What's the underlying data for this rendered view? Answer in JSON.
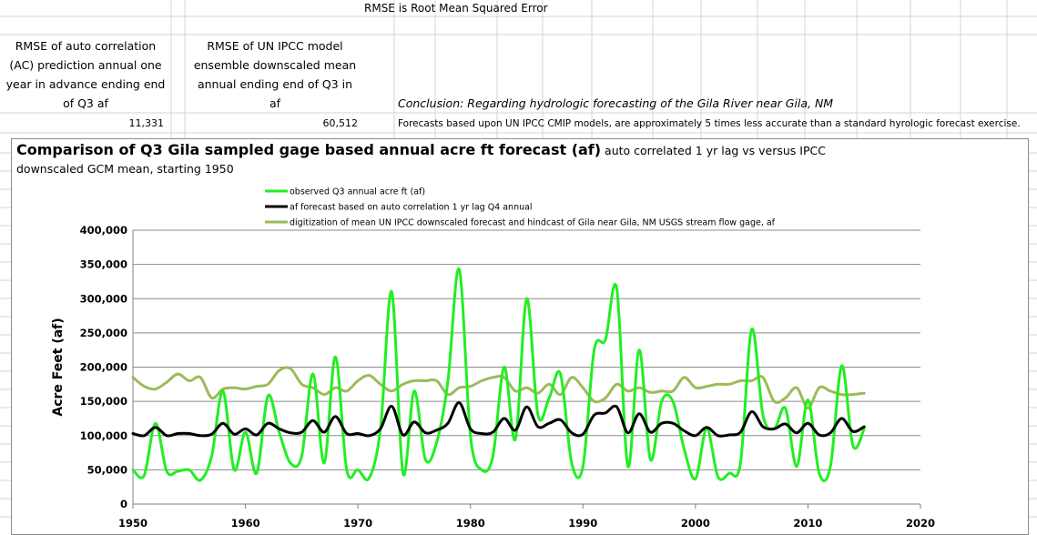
{
  "sheet": {
    "note": "RMSE is  Root Mean Squared Error",
    "col_a_header": [
      "RMSE of auto correlation",
      "(AC)  prediction annual one",
      "year in advance ending end",
      "of Q3 af"
    ],
    "col_b_header": [
      "RMSE of UN IPCC model",
      "ensemble downscaled mean",
      "annual ending end of Q3 in",
      "af"
    ],
    "conclusion": "Conclusion: Regarding hydrologic forecasting of the Gila River near Gila, NM",
    "rmse_ac": "11,331",
    "rmse_ipcc": "60,512",
    "forecast_note": "Forecasts based upon UN IPCC CMIP models, are approximately 5 times less accurate than a standard hyrologic forecast exercise."
  },
  "chart_data": {
    "type": "line",
    "title": "Comparison of Q3 Gila sampled gage based annual acre ft forecast  (af)",
    "title_rest": " auto correlated 1 yr lag  vs versus  IPCC",
    "title_line2": "downscaled GCM mean, starting 1950",
    "ylabel": "Acre Feet (af)",
    "xlabel": "",
    "xlim": [
      1950,
      2020
    ],
    "ylim": [
      0,
      400000
    ],
    "x_ticks": [
      "1950",
      "1960",
      "1970",
      "1980",
      "1990",
      "2000",
      "2010",
      "2020"
    ],
    "y_ticks": [
      "0",
      "50,000",
      "100,000",
      "150,000",
      "200,000",
      "250,000",
      "300,000",
      "350,000",
      "400,000"
    ],
    "grid": true,
    "legend_position": "top-center",
    "series": [
      {
        "name": "observed Q3 annual acre ft (af)",
        "color": "#22ee22",
        "width": 3,
        "x": [
          1950,
          1951,
          1952,
          1953,
          1954,
          1955,
          1956,
          1957,
          1958,
          1959,
          1960,
          1961,
          1962,
          1963,
          1964,
          1965,
          1966,
          1967,
          1968,
          1969,
          1970,
          1971,
          1972,
          1973,
          1974,
          1975,
          1976,
          1977,
          1978,
          1979,
          1980,
          1981,
          1982,
          1983,
          1984,
          1985,
          1986,
          1987,
          1988,
          1989,
          1990,
          1991,
          1992,
          1993,
          1994,
          1995,
          1996,
          1997,
          1998,
          1999,
          2000,
          2001,
          2002,
          2003,
          2004,
          2005,
          2006,
          2007,
          2008,
          2009,
          2010,
          2011,
          2012,
          2013,
          2014,
          2015
        ],
        "values": [
          50000,
          42000,
          118000,
          48000,
          48000,
          50000,
          35000,
          70000,
          165000,
          50000,
          105000,
          45000,
          158000,
          105000,
          60000,
          70000,
          190000,
          60000,
          215000,
          50000,
          50000,
          38000,
          110000,
          310000,
          45000,
          165000,
          65000,
          90000,
          180000,
          343000,
          100000,
          50000,
          70000,
          200000,
          95000,
          300000,
          130000,
          155000,
          190000,
          60000,
          55000,
          225000,
          240000,
          315000,
          55000,
          225000,
          65000,
          150000,
          150000,
          80000,
          37000,
          110000,
          40000,
          45000,
          60000,
          255000,
          130000,
          110000,
          140000,
          55000,
          152000,
          45000,
          55000,
          202000,
          85000,
          110000
        ]
      },
      {
        "name": "af forecast based on auto correlation 1 yr lag Q4 annual",
        "color": "#000000",
        "width": 3,
        "x": [
          1950,
          1951,
          1952,
          1953,
          1954,
          1955,
          1956,
          1957,
          1958,
          1959,
          1960,
          1961,
          1962,
          1963,
          1964,
          1965,
          1966,
          1967,
          1968,
          1969,
          1970,
          1971,
          1972,
          1973,
          1974,
          1975,
          1976,
          1977,
          1978,
          1979,
          1980,
          1981,
          1982,
          1983,
          1984,
          1985,
          1986,
          1987,
          1988,
          1989,
          1990,
          1991,
          1992,
          1993,
          1994,
          1995,
          1996,
          1997,
          1998,
          1999,
          2000,
          2001,
          2002,
          2003,
          2004,
          2005,
          2006,
          2007,
          2008,
          2009,
          2010,
          2011,
          2012,
          2013,
          2014,
          2015
        ],
        "values": [
          103000,
          100000,
          112000,
          100000,
          103000,
          103000,
          100000,
          102000,
          118000,
          102000,
          110000,
          101000,
          118000,
          110000,
          104000,
          105000,
          122000,
          105000,
          128000,
          103000,
          103000,
          100000,
          110000,
          143000,
          101000,
          120000,
          104000,
          108000,
          118000,
          148000,
          110000,
          103000,
          105000,
          125000,
          108000,
          142000,
          113000,
          118000,
          123000,
          104000,
          102000,
          130000,
          133000,
          142000,
          104000,
          132000,
          105000,
          118000,
          118000,
          107000,
          100000,
          112000,
          100000,
          101000,
          105000,
          135000,
          113000,
          110000,
          117000,
          104000,
          118000,
          101000,
          104000,
          125000,
          106000,
          113000
        ]
      },
      {
        "name": "digitization of mean UN IPCC downscaled forecast and hindcast of Gila near Gila, NM USGS stream flow gage, af",
        "color": "#9bbb59",
        "width": 3,
        "x": [
          1950,
          1951,
          1952,
          1953,
          1954,
          1955,
          1956,
          1957,
          1958,
          1959,
          1960,
          1961,
          1962,
          1963,
          1964,
          1965,
          1966,
          1967,
          1968,
          1969,
          1970,
          1971,
          1972,
          1973,
          1974,
          1975,
          1976,
          1977,
          1978,
          1979,
          1980,
          1981,
          1982,
          1983,
          1984,
          1985,
          1986,
          1987,
          1988,
          1989,
          1990,
          1991,
          1992,
          1993,
          1994,
          1995,
          1996,
          1997,
          1998,
          1999,
          2000,
          2001,
          2002,
          2003,
          2004,
          2005,
          2006,
          2007,
          2008,
          2009,
          2010,
          2011,
          2012,
          2013,
          2014,
          2015
        ],
        "values": [
          185000,
          172000,
          168000,
          178000,
          190000,
          180000,
          185000,
          155000,
          168000,
          170000,
          168000,
          172000,
          175000,
          195000,
          198000,
          175000,
          170000,
          160000,
          170000,
          165000,
          180000,
          188000,
          175000,
          165000,
          175000,
          180000,
          180000,
          180000,
          160000,
          170000,
          172000,
          180000,
          185000,
          185000,
          165000,
          170000,
          162000,
          175000,
          160000,
          185000,
          170000,
          150000,
          155000,
          175000,
          165000,
          170000,
          163000,
          165000,
          165000,
          185000,
          170000,
          172000,
          175000,
          175000,
          180000,
          180000,
          185000,
          150000,
          155000,
          170000,
          140000,
          170000,
          165000,
          160000,
          160000,
          162000
        ]
      }
    ]
  }
}
